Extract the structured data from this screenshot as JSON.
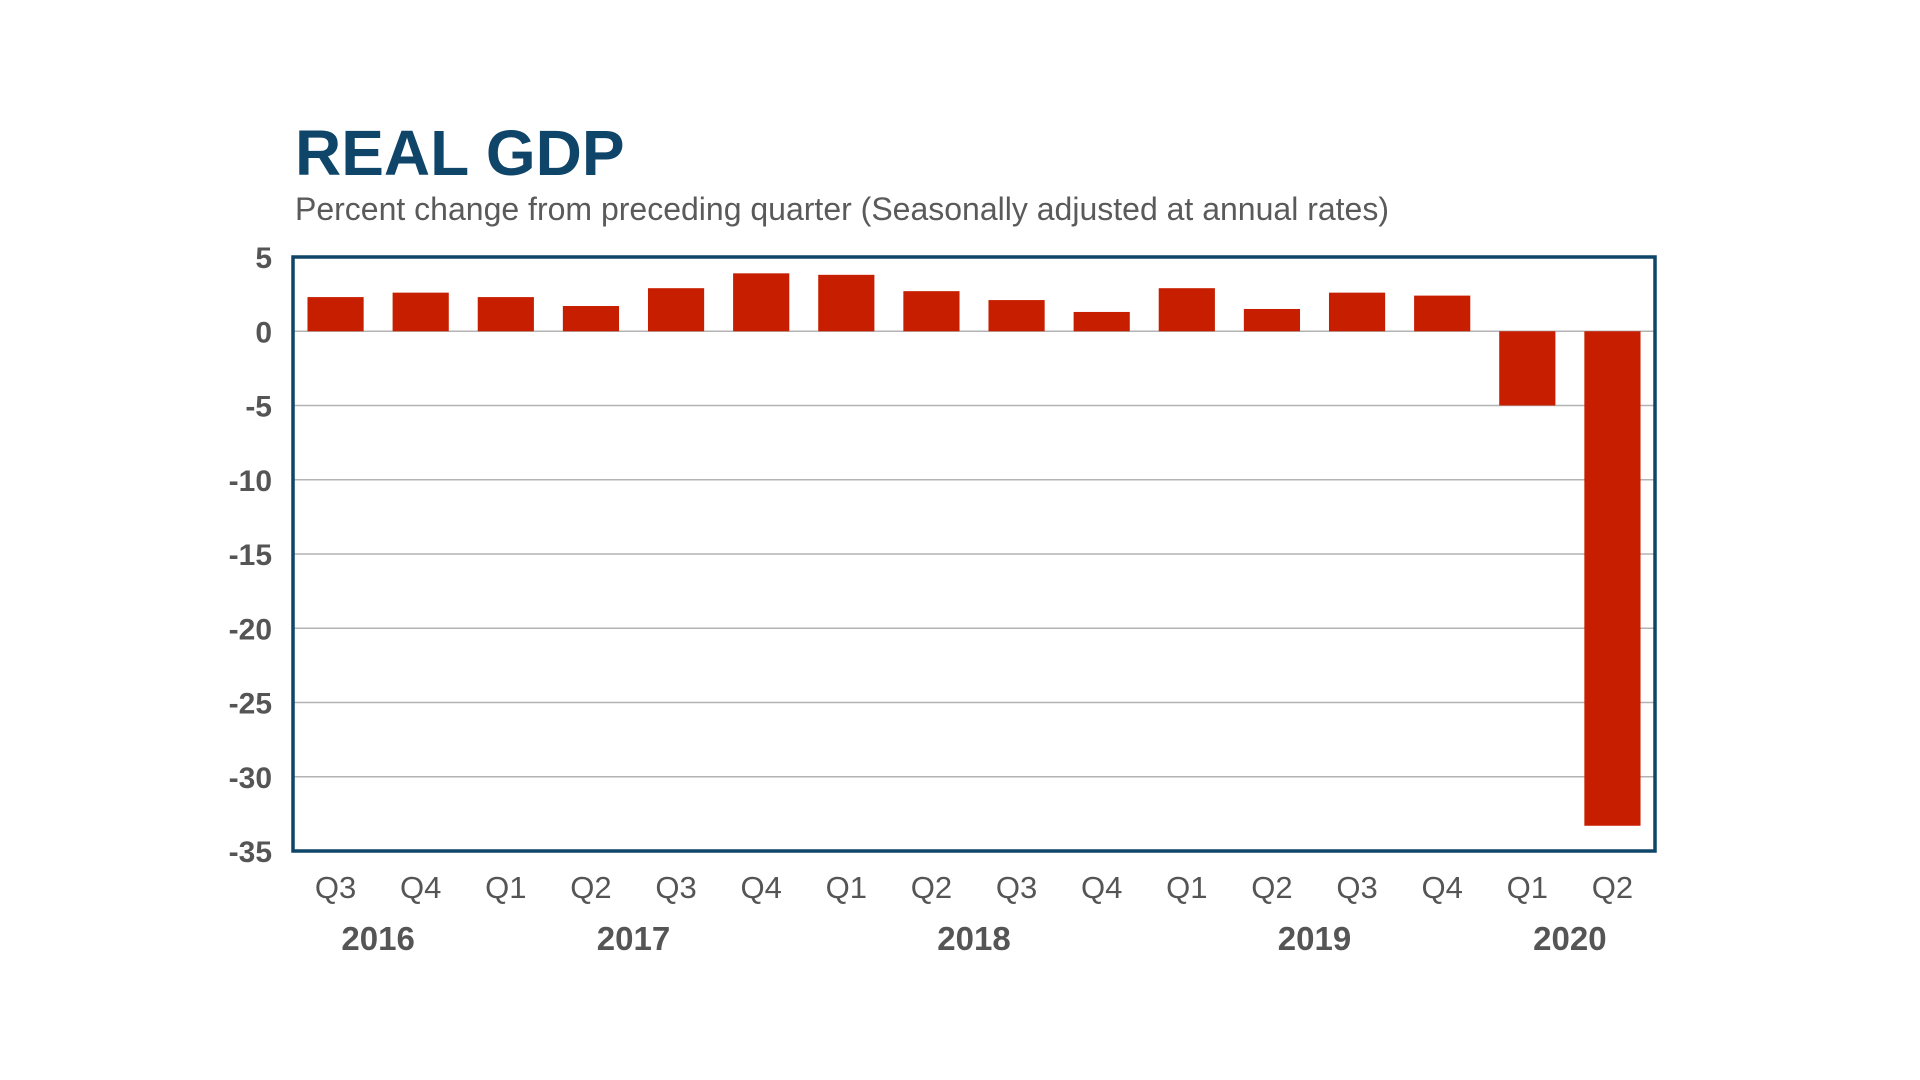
{
  "chart_data": {
    "type": "bar",
    "title": "REAL GDP",
    "subtitle": "Percent change from preceding quarter (Seasonally adjusted at annual rates)",
    "categories": [
      "Q3",
      "Q4",
      "Q1",
      "Q2",
      "Q3",
      "Q4",
      "Q1",
      "Q2",
      "Q3",
      "Q4",
      "Q1",
      "Q2",
      "Q3",
      "Q4",
      "Q1",
      "Q2"
    ],
    "years": [
      {
        "label": "2016",
        "span": [
          0,
          1
        ]
      },
      {
        "label": "2017",
        "span": [
          2,
          5
        ]
      },
      {
        "label": "2018",
        "span": [
          6,
          9
        ]
      },
      {
        "label": "2019",
        "span": [
          10,
          13
        ]
      },
      {
        "label": "2020",
        "span": [
          14,
          15
        ]
      }
    ],
    "values": [
      2.3,
      2.6,
      2.3,
      1.7,
      2.9,
      3.9,
      3.8,
      2.7,
      2.1,
      1.3,
      2.9,
      1.5,
      2.6,
      2.4,
      -5.0,
      -33.3
    ],
    "ylim": [
      -35,
      5
    ],
    "yticks": [
      5,
      0,
      -5,
      -10,
      -15,
      -20,
      -25,
      -30,
      -35
    ],
    "xlabel": "",
    "ylabel": "",
    "grid": true,
    "legend": "none",
    "colors": {
      "bar": "#c81e00",
      "frame": "#0f4568",
      "title": "#0f4568",
      "grid": "#b3b3b3",
      "text": "#555555"
    }
  }
}
